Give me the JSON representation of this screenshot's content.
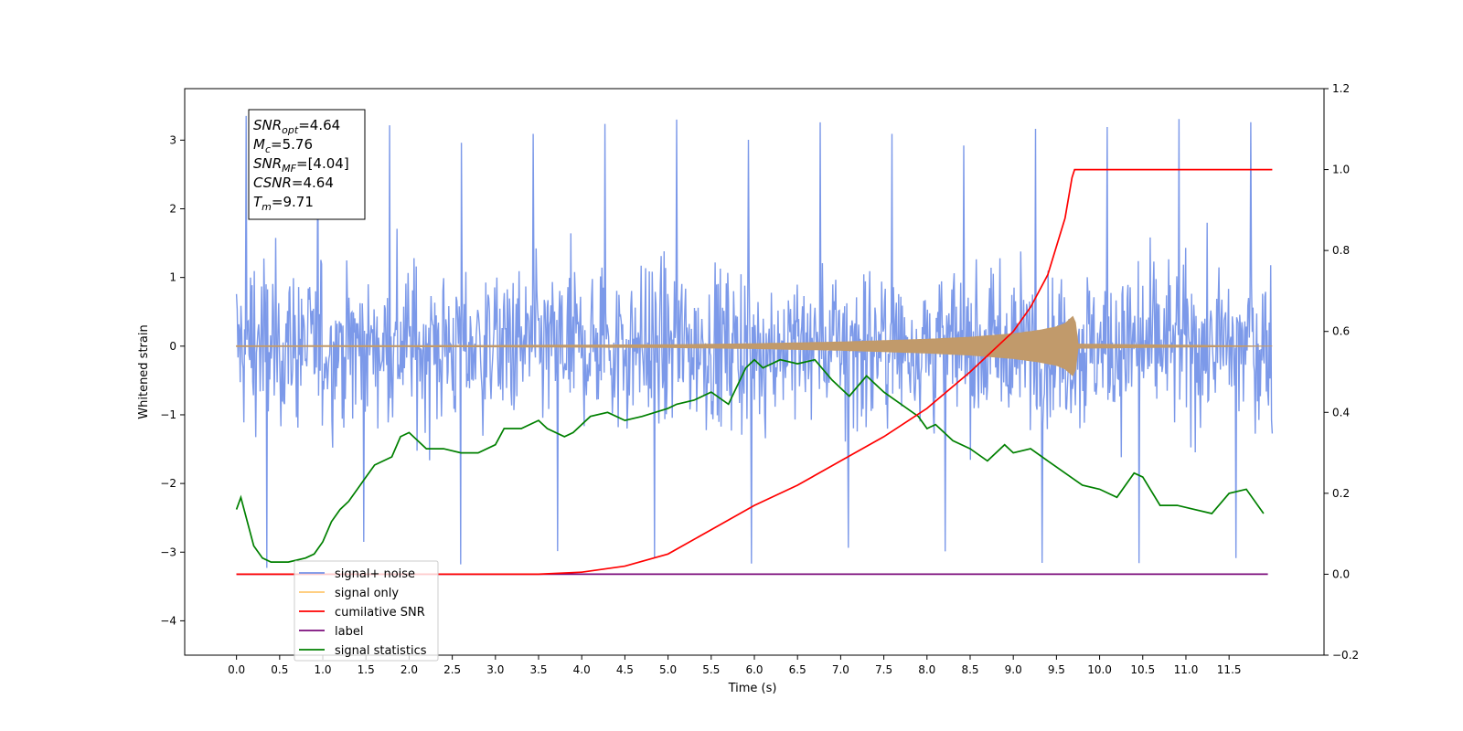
{
  "chart_data": {
    "type": "line",
    "xlabel": "Time (s)",
    "ylabel": "Whitened strain",
    "xlim": [
      -0.6,
      12.6
    ],
    "ylim": [
      -4.5,
      3.75
    ],
    "y2lim": [
      -0.2,
      1.2
    ],
    "x_ticks": [
      0.0,
      0.5,
      1.0,
      1.5,
      2.0,
      2.5,
      3.0,
      3.5,
      4.0,
      4.5,
      5.0,
      5.5,
      6.0,
      6.5,
      7.0,
      7.5,
      8.0,
      8.5,
      9.0,
      9.5,
      10.0,
      10.5,
      11.0,
      11.5
    ],
    "x_tick_labels": [
      "0.0",
      "0.5",
      "1.0",
      "1.5",
      "2.0",
      "2.5",
      "3.0",
      "3.5",
      "4.0",
      "4.5",
      "5.0",
      "5.5",
      "6.0",
      "6.5",
      "7.0",
      "7.5",
      "8.0",
      "8.5",
      "9.0",
      "9.5",
      "10.0",
      "10.5",
      "11.0",
      "11.5"
    ],
    "y_ticks": [
      -4,
      -3,
      -2,
      -1,
      0,
      1,
      2,
      3
    ],
    "y_tick_labels": [
      "−4",
      "−3",
      "−2",
      "−1",
      "0",
      "1",
      "2",
      "3"
    ],
    "y2_ticks": [
      -0.2,
      0.0,
      0.2,
      0.4,
      0.6,
      0.8,
      1.0,
      1.2
    ],
    "y2_tick_labels": [
      "−0.2",
      "0.0",
      "0.2",
      "0.4",
      "0.6",
      "0.8",
      "1.0",
      "1.2"
    ],
    "grid": false,
    "legend_placement": "lower-left",
    "annotation": {
      "lines": [
        {
          "var": "SNR",
          "sub": "opt",
          "value": "=4.64"
        },
        {
          "var": "M",
          "sub": "c",
          "value": "=5.76"
        },
        {
          "var": "SNR",
          "sub": "MF",
          "value": "=[4.04]"
        },
        {
          "var": "CSNR",
          "sub": "",
          "value": "=4.64"
        },
        {
          "var": "T",
          "sub": "m",
          "value": "=9.71"
        }
      ]
    },
    "series": [
      {
        "name": "signal+ noise",
        "axis": "left",
        "color": "#7593e8",
        "kind": "noise_band",
        "x_range": [
          0.0,
          12.0
        ],
        "typical_amplitude": 1.3,
        "max": 3.4,
        "min": -3.3
      },
      {
        "name": "signal only",
        "axis": "left",
        "color": "#c19a6b",
        "kind": "chirp_envelope",
        "x": [
          0.0,
          3.0,
          5.0,
          6.0,
          7.0,
          8.0,
          8.5,
          9.0,
          9.3,
          9.5,
          9.6,
          9.68,
          9.71,
          9.75,
          12.0
        ],
        "envelope": [
          0.005,
          0.01,
          0.02,
          0.035,
          0.06,
          0.1,
          0.13,
          0.18,
          0.23,
          0.28,
          0.33,
          0.42,
          0.45,
          0.03,
          0.0
        ]
      },
      {
        "name": "cumilative SNR",
        "axis": "right",
        "color": "#ff0000",
        "x": [
          0.0,
          3.5,
          4.0,
          4.5,
          5.0,
          5.5,
          6.0,
          6.5,
          7.0,
          7.5,
          8.0,
          8.5,
          9.0,
          9.2,
          9.4,
          9.6,
          9.68,
          9.71,
          12.0
        ],
        "y": [
          0.0,
          0.0,
          0.005,
          0.02,
          0.05,
          0.11,
          0.17,
          0.22,
          0.28,
          0.34,
          0.41,
          0.5,
          0.6,
          0.66,
          0.74,
          0.88,
          0.98,
          1.0,
          1.0
        ]
      },
      {
        "name": "label",
        "axis": "right",
        "color": "#7b0c7b",
        "x": [
          0.0,
          11.95
        ],
        "y": [
          0.0,
          0.0
        ]
      },
      {
        "name": "signal statistics",
        "axis": "right",
        "color": "#008000",
        "x": [
          0.0,
          0.05,
          0.1,
          0.2,
          0.3,
          0.4,
          0.6,
          0.8,
          0.9,
          1.0,
          1.1,
          1.2,
          1.3,
          1.4,
          1.5,
          1.6,
          1.8,
          1.9,
          2.0,
          2.2,
          2.4,
          2.6,
          2.8,
          3.0,
          3.1,
          3.3,
          3.5,
          3.6,
          3.8,
          3.9,
          4.1,
          4.3,
          4.5,
          4.7,
          5.0,
          5.1,
          5.3,
          5.5,
          5.7,
          5.9,
          6.0,
          6.1,
          6.3,
          6.5,
          6.7,
          6.9,
          7.1,
          7.3,
          7.5,
          7.7,
          7.9,
          8.0,
          8.1,
          8.3,
          8.5,
          8.7,
          8.9,
          9.0,
          9.2,
          9.4,
          9.6,
          9.8,
          10.0,
          10.2,
          10.4,
          10.5,
          10.7,
          10.9,
          11.1,
          11.3,
          11.5,
          11.7,
          11.9
        ],
        "y": [
          0.16,
          0.19,
          0.15,
          0.07,
          0.04,
          0.03,
          0.03,
          0.04,
          0.05,
          0.08,
          0.13,
          0.16,
          0.18,
          0.21,
          0.24,
          0.27,
          0.29,
          0.34,
          0.35,
          0.31,
          0.31,
          0.3,
          0.3,
          0.32,
          0.36,
          0.36,
          0.38,
          0.36,
          0.34,
          0.35,
          0.39,
          0.4,
          0.38,
          0.39,
          0.41,
          0.42,
          0.43,
          0.45,
          0.42,
          0.51,
          0.53,
          0.51,
          0.53,
          0.52,
          0.53,
          0.48,
          0.44,
          0.49,
          0.45,
          0.42,
          0.39,
          0.36,
          0.37,
          0.33,
          0.31,
          0.28,
          0.32,
          0.3,
          0.31,
          0.28,
          0.25,
          0.22,
          0.21,
          0.19,
          0.25,
          0.24,
          0.17,
          0.17,
          0.16,
          0.15,
          0.2,
          0.21,
          0.15
        ]
      }
    ]
  }
}
